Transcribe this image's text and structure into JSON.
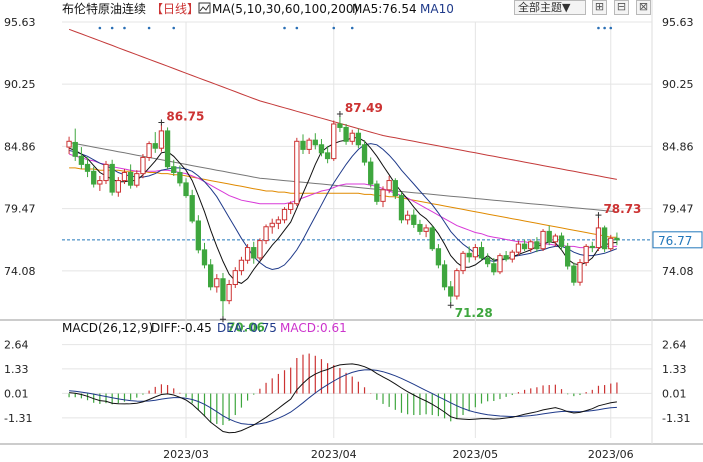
{
  "header": {
    "title": "布伦特原油连续",
    "period": "【日线】",
    "ma_label": "MA(5,10,30,60,100,200)",
    "ma5_label": "MA5:76.54",
    "ma10_label": "MA10",
    "theme_button": "全部主题▼",
    "icon_buttons": [
      "expand-icon",
      "restore-icon",
      "close-icon"
    ]
  },
  "colors": {
    "up": "#cc3333",
    "down": "#3ea63e",
    "grid": "#e4e4e4",
    "ma5": "#111111",
    "ma10": "#1f3a8a",
    "ma30": "#d83ad8",
    "ma60": "#e08a00",
    "ma100": "#777777",
    "ma200": "#c43a3a",
    "macd_diff": "#111111",
    "macd_dea": "#1f3a8a",
    "current_line": "#2277bb"
  },
  "chart_data": [
    {
      "type": "candlestick",
      "title": "布伦特原油连续【日线】",
      "y_ticks": [
        "95.63",
        "90.25",
        "84.86",
        "79.47",
        "74.08"
      ],
      "ylim": [
        70.0,
        95.63
      ],
      "x_ticks": [
        "2023/03",
        "2023/04",
        "2023/05",
        "2023/06"
      ],
      "current_price": "76.77",
      "annotations": [
        {
          "label": "86.75",
          "kind": "high",
          "index": 15
        },
        {
          "label": "70.06",
          "kind": "low",
          "index": 25
        },
        {
          "label": "87.49",
          "kind": "high",
          "index": 44
        },
        {
          "label": "71.28",
          "kind": "low",
          "index": 62
        },
        {
          "label": "78.73",
          "kind": "high",
          "index": 86
        }
      ],
      "ohlc": [
        [
          84.8,
          85.7,
          84.2,
          85.3
        ],
        [
          85.2,
          86.4,
          83.6,
          84.0
        ],
        [
          84.0,
          84.8,
          82.9,
          83.3
        ],
        [
          83.3,
          83.9,
          82.2,
          82.7
        ],
        [
          82.7,
          83.1,
          81.3,
          81.6
        ],
        [
          81.6,
          82.3,
          81.0,
          81.9
        ],
        [
          81.9,
          83.6,
          81.6,
          83.3
        ],
        [
          83.3,
          83.7,
          80.6,
          80.9
        ],
        [
          80.9,
          82.2,
          80.5,
          81.9
        ],
        [
          81.9,
          82.9,
          81.6,
          82.6
        ],
        [
          82.6,
          83.3,
          81.2,
          81.5
        ],
        [
          81.5,
          82.8,
          81.3,
          82.5
        ],
        [
          82.5,
          84.2,
          82.1,
          83.9
        ],
        [
          83.9,
          85.3,
          83.6,
          85.1
        ],
        [
          85.1,
          86.1,
          84.3,
          84.7
        ],
        [
          84.7,
          86.75,
          84.4,
          86.2
        ],
        [
          86.2,
          86.5,
          82.9,
          83.1
        ],
        [
          83.1,
          83.7,
          82.3,
          82.6
        ],
        [
          82.6,
          83.2,
          81.4,
          81.7
        ],
        [
          81.7,
          82.1,
          80.4,
          80.6
        ],
        [
          80.6,
          81.1,
          78.2,
          78.4
        ],
        [
          78.4,
          78.9,
          75.6,
          75.9
        ],
        [
          75.9,
          76.5,
          74.3,
          74.6
        ],
        [
          74.6,
          75.1,
          72.4,
          72.7
        ],
        [
          72.7,
          73.8,
          72.2,
          73.4
        ],
        [
          73.4,
          73.9,
          70.06,
          71.5
        ],
        [
          71.5,
          73.3,
          71.2,
          72.9
        ],
        [
          72.9,
          74.4,
          72.6,
          74.1
        ],
        [
          74.1,
          75.3,
          73.7,
          75.0
        ],
        [
          75.0,
          76.4,
          74.7,
          76.1
        ],
        [
          76.1,
          76.6,
          74.7,
          75.2
        ],
        [
          75.2,
          76.9,
          75.0,
          76.7
        ],
        [
          76.7,
          78.1,
          76.4,
          77.9
        ],
        [
          77.9,
          78.6,
          77.3,
          78.2
        ],
        [
          78.2,
          78.8,
          77.7,
          78.5
        ],
        [
          78.5,
          79.6,
          78.2,
          79.4
        ],
        [
          79.4,
          80.1,
          79.0,
          79.9
        ],
        [
          79.9,
          85.6,
          79.7,
          85.3
        ],
        [
          85.3,
          85.9,
          84.2,
          84.6
        ],
        [
          84.6,
          85.6,
          84.2,
          85.4
        ],
        [
          85.4,
          86.0,
          84.6,
          85.0
        ],
        [
          85.0,
          85.5,
          84.0,
          84.3
        ],
        [
          84.3,
          84.9,
          83.4,
          83.8
        ],
        [
          83.8,
          87.1,
          83.6,
          86.8
        ],
        [
          86.8,
          87.49,
          86.1,
          86.5
        ],
        [
          86.5,
          86.8,
          85.0,
          85.3
        ],
        [
          85.3,
          86.3,
          85.0,
          86.0
        ],
        [
          86.0,
          86.4,
          84.7,
          85.0
        ],
        [
          85.0,
          85.4,
          83.2,
          83.5
        ],
        [
          83.5,
          83.9,
          81.3,
          81.6
        ],
        [
          81.6,
          81.9,
          79.8,
          80.1
        ],
        [
          80.1,
          81.4,
          79.6,
          81.1
        ],
        [
          81.1,
          82.3,
          80.8,
          81.9
        ],
        [
          81.9,
          82.1,
          80.3,
          80.6
        ],
        [
          80.6,
          80.9,
          78.2,
          78.5
        ],
        [
          78.5,
          79.3,
          78.1,
          78.9
        ],
        [
          78.9,
          79.4,
          77.8,
          78.1
        ],
        [
          78.1,
          78.5,
          77.2,
          77.5
        ],
        [
          77.5,
          78.1,
          77.0,
          77.8
        ],
        [
          77.8,
          78.0,
          75.8,
          76.0
        ],
        [
          76.0,
          76.4,
          74.3,
          74.6
        ],
        [
          74.6,
          75.0,
          72.4,
          72.7
        ],
        [
          72.7,
          73.2,
          71.28,
          71.9
        ],
        [
          71.9,
          74.3,
          71.6,
          74.1
        ],
        [
          74.1,
          75.8,
          73.8,
          75.6
        ],
        [
          75.6,
          76.2,
          74.8,
          75.3
        ],
        [
          75.3,
          76.4,
          75.0,
          76.1
        ],
        [
          76.1,
          76.6,
          75.0,
          75.2
        ],
        [
          75.2,
          75.6,
          74.4,
          74.7
        ],
        [
          74.7,
          75.2,
          73.7,
          74.0
        ],
        [
          74.0,
          75.6,
          73.8,
          75.4
        ],
        [
          75.4,
          75.8,
          74.9,
          75.1
        ],
        [
          75.1,
          75.9,
          74.8,
          75.7
        ],
        [
          75.7,
          76.7,
          75.4,
          76.4
        ],
        [
          76.4,
          76.8,
          75.8,
          76.0
        ],
        [
          76.0,
          76.8,
          75.7,
          76.6
        ],
        [
          76.6,
          77.0,
          75.7,
          76.0
        ],
        [
          76.0,
          77.7,
          75.8,
          77.5
        ],
        [
          77.5,
          78.0,
          76.3,
          76.6
        ],
        [
          76.6,
          77.3,
          76.2,
          77.1
        ],
        [
          77.1,
          77.4,
          75.9,
          76.2
        ],
        [
          76.2,
          76.5,
          74.2,
          74.5
        ],
        [
          74.5,
          74.8,
          72.8,
          73.1
        ],
        [
          73.1,
          75.1,
          72.8,
          74.8
        ],
        [
          74.8,
          76.4,
          74.5,
          76.2
        ],
        [
          76.2,
          76.6,
          75.7,
          76.1
        ],
        [
          76.1,
          78.73,
          75.8,
          77.8
        ],
        [
          77.8,
          78.0,
          75.7,
          76.0
        ],
        [
          76.0,
          77.2,
          75.8,
          76.9
        ],
        [
          76.9,
          77.4,
          76.3,
          76.77
        ]
      ],
      "ma200": [
        95.0,
        94.8,
        94.6,
        94.4,
        94.2,
        94.0,
        93.8,
        93.6,
        93.4,
        93.2,
        93.0,
        92.8,
        92.6,
        92.4,
        92.2,
        92.0,
        91.8,
        91.6,
        91.4,
        91.2,
        91.0,
        90.8,
        90.6,
        90.4,
        90.2,
        90.0,
        89.8,
        89.6,
        89.4,
        89.2,
        89.0,
        88.8,
        88.65,
        88.5,
        88.35,
        88.2,
        88.05,
        87.9,
        87.75,
        87.6,
        87.45,
        87.3,
        87.15,
        87.0,
        86.85,
        86.7,
        86.55,
        86.4,
        86.25,
        86.1,
        85.95,
        85.8,
        85.7,
        85.6,
        85.5,
        85.4,
        85.3,
        85.2,
        85.1,
        85.0,
        84.9,
        84.8,
        84.7,
        84.6,
        84.5,
        84.4,
        84.3,
        84.2,
        84.1,
        84.0,
        83.9,
        83.8,
        83.7,
        83.6,
        83.5,
        83.4,
        83.3,
        83.2,
        83.1,
        83.0,
        82.9,
        82.8,
        82.7,
        82.6,
        82.5,
        82.4,
        82.3,
        82.2,
        82.1,
        82.0
      ],
      "ma100": [
        85.2,
        85.1,
        85.0,
        84.9,
        84.8,
        84.7,
        84.6,
        84.5,
        84.4,
        84.3,
        84.2,
        84.1,
        84.0,
        83.9,
        83.8,
        83.7,
        83.6,
        83.5,
        83.4,
        83.3,
        83.2,
        83.1,
        83.0,
        82.9,
        82.8,
        82.7,
        82.6,
        82.5,
        82.4,
        82.3,
        82.2,
        82.1,
        82.05,
        82.0,
        81.95,
        81.9,
        81.85,
        81.8,
        81.75,
        81.7,
        81.65,
        81.6,
        81.55,
        81.5,
        81.45,
        81.4,
        81.35,
        81.3,
        81.25,
        81.2,
        81.15,
        81.1,
        81.05,
        81.0,
        80.95,
        80.9,
        80.85,
        80.8,
        80.75,
        80.7,
        80.65,
        80.6,
        80.55,
        80.5,
        80.45,
        80.4,
        80.35,
        80.3,
        80.25,
        80.2,
        80.15,
        80.1,
        80.05,
        80.0,
        79.95,
        79.9,
        79.85,
        79.8,
        79.75,
        79.7,
        79.65,
        79.6,
        79.55,
        79.5,
        79.45,
        79.4,
        79.35,
        79.3,
        79.25,
        79.2
      ],
      "ma60": [
        83.0,
        83.0,
        82.9,
        82.9,
        82.9,
        82.8,
        82.8,
        82.8,
        82.8,
        82.7,
        82.7,
        82.7,
        82.7,
        82.6,
        82.6,
        82.5,
        82.5,
        82.4,
        82.4,
        82.3,
        82.2,
        82.1,
        82.0,
        81.9,
        81.8,
        81.7,
        81.6,
        81.5,
        81.4,
        81.3,
        81.2,
        81.1,
        81.0,
        81.0,
        80.9,
        80.9,
        80.8,
        80.8,
        80.8,
        80.8,
        80.8,
        80.8,
        80.8,
        80.8,
        80.8,
        80.8,
        80.8,
        80.8,
        80.7,
        80.7,
        80.6,
        80.6,
        80.5,
        80.5,
        80.4,
        80.3,
        80.2,
        80.1,
        80.0,
        79.9,
        79.8,
        79.7,
        79.6,
        79.5,
        79.4,
        79.3,
        79.2,
        79.1,
        79.0,
        78.9,
        78.8,
        78.7,
        78.6,
        78.5,
        78.4,
        78.3,
        78.2,
        78.1,
        78.0,
        77.9,
        77.8,
        77.7,
        77.6,
        77.5,
        77.4,
        77.3,
        77.2,
        77.1,
        77.0,
        77.0
      ],
      "ma30": [
        84.2,
        84.0,
        83.9,
        83.7,
        83.6,
        83.4,
        83.3,
        83.1,
        83.0,
        82.9,
        82.8,
        82.7,
        82.7,
        82.7,
        82.7,
        82.8,
        82.8,
        82.7,
        82.6,
        82.5,
        82.3,
        82.1,
        81.8,
        81.5,
        81.2,
        80.9,
        80.6,
        80.4,
        80.2,
        80.1,
        80.0,
        79.9,
        79.9,
        79.9,
        79.9,
        79.9,
        80.0,
        80.2,
        80.4,
        80.6,
        80.8,
        81.0,
        81.1,
        81.3,
        81.5,
        81.6,
        81.6,
        81.6,
        81.6,
        81.5,
        81.4,
        81.2,
        81.0,
        80.8,
        80.6,
        80.4,
        80.1,
        79.8,
        79.5,
        79.2,
        78.9,
        78.6,
        78.3,
        78.0,
        77.8,
        77.6,
        77.4,
        77.3,
        77.1,
        77.0,
        76.9,
        76.8,
        76.7,
        76.6,
        76.6,
        76.5,
        76.5,
        76.4,
        76.4,
        76.3,
        76.3,
        76.2,
        76.2,
        76.1,
        76.1,
        76.1,
        76.1,
        76.2,
        76.2,
        76.2
      ],
      "ma10": [
        84.5,
        84.4,
        84.2,
        84.0,
        83.7,
        83.4,
        83.2,
        82.9,
        82.6,
        82.4,
        82.3,
        82.2,
        82.2,
        82.3,
        82.5,
        82.8,
        82.9,
        83.0,
        83.0,
        82.9,
        82.7,
        82.3,
        81.8,
        81.2,
        80.5,
        79.6,
        78.7,
        77.8,
        76.9,
        76.1,
        75.3,
        74.8,
        74.4,
        74.2,
        74.3,
        74.6,
        75.2,
        75.9,
        76.8,
        77.8,
        78.8,
        79.8,
        80.8,
        81.7,
        82.5,
        83.3,
        84.0,
        84.6,
        85.0,
        85.1,
        85.0,
        84.6,
        84.1,
        83.5,
        82.8,
        82.2,
        81.6,
        81.0,
        80.4,
        79.8,
        79.1,
        78.3,
        77.5,
        76.9,
        76.4,
        76.0,
        75.6,
        75.2,
        75.0,
        74.9,
        75.0,
        75.1,
        75.3,
        75.4,
        75.5,
        75.6,
        75.8,
        75.9,
        76.1,
        76.2,
        76.2,
        76.0,
        75.7,
        75.5,
        75.4,
        75.4,
        75.5,
        75.6,
        75.8,
        76.0
      ],
      "ma5": [
        84.7,
        84.5,
        84.2,
        83.8,
        83.2,
        82.6,
        82.3,
        82.0,
        81.8,
        81.8,
        81.9,
        81.9,
        82.4,
        83.0,
        83.6,
        84.3,
        84.4,
        84.0,
        83.4,
        82.8,
        81.9,
        80.6,
        79.2,
        77.6,
        76.2,
        74.9,
        73.8,
        73.2,
        73.0,
        73.4,
        74.2,
        74.9,
        75.6,
        76.3,
        76.9,
        77.6,
        78.3,
        79.5,
        80.8,
        82.0,
        83.3,
        84.4,
        84.8,
        85.1,
        85.3,
        85.4,
        85.6,
        85.6,
        85.3,
        84.7,
        84.0,
        83.2,
        82.4,
        81.6,
        80.9,
        80.3,
        79.6,
        79.0,
        78.6,
        78.0,
        77.3,
        76.4,
        75.4,
        74.8,
        74.4,
        74.4,
        74.6,
        75.0,
        75.4,
        75.0,
        75.1,
        75.1,
        75.3,
        75.5,
        75.7,
        75.9,
        76.2,
        76.4,
        76.6,
        76.5,
        75.9,
        75.1,
        74.7,
        74.6,
        74.8,
        75.2,
        76.0,
        76.3,
        76.5,
        76.54
      ]
    },
    {
      "type": "macd",
      "title": "MACD(26,12,9)",
      "diff_label": "DIFF:-0.45",
      "dea_label": "DEA:-0.75",
      "macd_label": "MACD:0.61",
      "y_ticks": [
        "2.64",
        "1.33",
        "0.01",
        "-1.31"
      ],
      "ylim": [
        -2.4,
        3.0
      ],
      "diff": [
        0.05,
        0.02,
        -0.05,
        -0.15,
        -0.28,
        -0.38,
        -0.42,
        -0.52,
        -0.55,
        -0.56,
        -0.55,
        -0.52,
        -0.45,
        -0.32,
        -0.18,
        -0.05,
        -0.02,
        -0.08,
        -0.2,
        -0.35,
        -0.58,
        -0.88,
        -1.2,
        -1.55,
        -1.8,
        -2.05,
        -2.12,
        -2.1,
        -2.0,
        -1.85,
        -1.7,
        -1.5,
        -1.28,
        -1.05,
        -0.8,
        -0.55,
        -0.3,
        0.2,
        0.55,
        0.85,
        1.05,
        1.2,
        1.3,
        1.45,
        1.55,
        1.58,
        1.6,
        1.55,
        1.45,
        1.3,
        1.08,
        0.9,
        0.72,
        0.52,
        0.3,
        0.1,
        -0.08,
        -0.25,
        -0.4,
        -0.58,
        -0.78,
        -1.0,
        -1.25,
        -1.35,
        -1.38,
        -1.4,
        -1.38,
        -1.35,
        -1.35,
        -1.38,
        -1.36,
        -1.32,
        -1.28,
        -1.2,
        -1.12,
        -1.05,
        -0.98,
        -0.88,
        -0.82,
        -0.76,
        -0.85,
        -0.98,
        -1.05,
        -1.02,
        -0.92,
        -0.82,
        -0.66,
        -0.58,
        -0.5,
        -0.45
      ],
      "dea": [
        0.15,
        0.12,
        0.08,
        0.03,
        -0.03,
        -0.1,
        -0.16,
        -0.23,
        -0.29,
        -0.34,
        -0.38,
        -0.41,
        -0.42,
        -0.4,
        -0.36,
        -0.3,
        -0.25,
        -0.22,
        -0.22,
        -0.25,
        -0.32,
        -0.43,
        -0.58,
        -0.77,
        -0.98,
        -1.2,
        -1.38,
        -1.52,
        -1.62,
        -1.66,
        -1.67,
        -1.63,
        -1.57,
        -1.46,
        -1.33,
        -1.18,
        -1.0,
        -0.76,
        -0.5,
        -0.23,
        0.03,
        0.27,
        0.48,
        0.68,
        0.86,
        1.02,
        1.14,
        1.23,
        1.28,
        1.29,
        1.25,
        1.18,
        1.08,
        0.96,
        0.82,
        0.66,
        0.5,
        0.33,
        0.16,
        0.0,
        -0.17,
        -0.33,
        -0.5,
        -0.66,
        -0.8,
        -0.92,
        -1.01,
        -1.08,
        -1.14,
        -1.18,
        -1.21,
        -1.23,
        -1.24,
        -1.24,
        -1.22,
        -1.19,
        -1.15,
        -1.1,
        -1.05,
        -1.0,
        -0.97,
        -0.96,
        -0.98,
        -0.98,
        -0.96,
        -0.92,
        -0.87,
        -0.81,
        -0.77,
        -0.75
      ]
    }
  ]
}
